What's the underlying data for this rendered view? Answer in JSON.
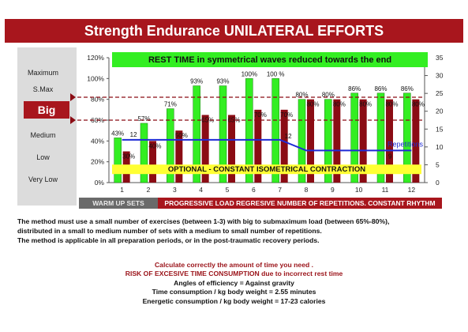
{
  "banner": {
    "title": "Strength Endurance UNILATERAL EFFORTS"
  },
  "chart_title": "REST TIME in symmetrical waves reduced towards the end",
  "side_labels": [
    "Maximum",
    "S.Max",
    "Big",
    "Medium",
    "Low",
    "Very Low"
  ],
  "optional_label": "OPTIONAL - CONSTANT ISOMETRICAL CONTRACTION",
  "repetitions_label": "Repetitions",
  "legend": {
    "warm": "WARM UP SETS",
    "prog": "PROGRESSIVE LOAD REGRESIVE NUMBER OF REPETITIONS. CONSTANT RHYTHM"
  },
  "description": [
    "The method must use a small number of exercises (between 1-3) with big to submaximum load (between 65%-80%),",
    "distributed in a small to medium  number of sets with a medium to small number of repetitions.",
    "The method is applicable in all preparation periods, or in the post-traumatic recovery periods."
  ],
  "notes": {
    "calc": "Calculate correctly  the amount of time you need .",
    "risk": "RISK OF EXCESIVE TIME CONSUMPTION due to incorrect rest time",
    "angles": "Angles of efficiency = Against gravity",
    "time": "Time consumption /  kg body weight  =  2.55 minutes",
    "energy": "Energetic consumption /  kg body weight =  17-23  calories"
  },
  "colors": {
    "green": "#33ee22",
    "darkred": "#8b0c14",
    "banner": "#a8161d",
    "line": "#1f2bd6"
  },
  "chart_data": {
    "type": "bar",
    "categories": [
      "1",
      "2",
      "3",
      "4",
      "5",
      "6",
      "7",
      "8",
      "9",
      "10",
      "11",
      "12"
    ],
    "series": [
      {
        "values": [
          43,
          57,
          71,
          93,
          93,
          100,
          100,
          80,
          80,
          86,
          86,
          86
        ],
        "labels": [
          "43%",
          "57%",
          "71%",
          "93%",
          "93%",
          "100%",
          "100 %",
          "80%",
          "80%",
          "86%",
          "86%",
          "86%"
        ]
      },
      {
        "values": [
          30,
          40,
          50,
          65,
          65,
          70,
          70,
          80,
          80,
          80,
          80,
          80
        ],
        "labels": [
          "30%",
          "40%",
          "50%",
          "65%",
          "65%",
          "70%",
          "70%",
          "80%",
          "80%",
          "80%",
          "80%",
          "80%"
        ]
      }
    ],
    "rest_line": [
      12,
      12,
      12,
      12,
      12,
      12,
      12,
      9,
      9,
      9,
      9,
      9
    ],
    "rest_labels": {
      "first": "12",
      "second": "12",
      "third": "9"
    },
    "y_left": {
      "ticks": [
        "0%",
        "20%",
        "40%",
        "60%",
        "80%",
        "100%",
        "120%"
      ],
      "ylim": [
        0,
        120
      ]
    },
    "y_right": {
      "ticks": [
        "0",
        "5",
        "10",
        "15",
        "20",
        "25",
        "30",
        "35"
      ],
      "ylim": [
        0,
        35
      ]
    },
    "reference_lines": [
      82,
      60
    ]
  }
}
